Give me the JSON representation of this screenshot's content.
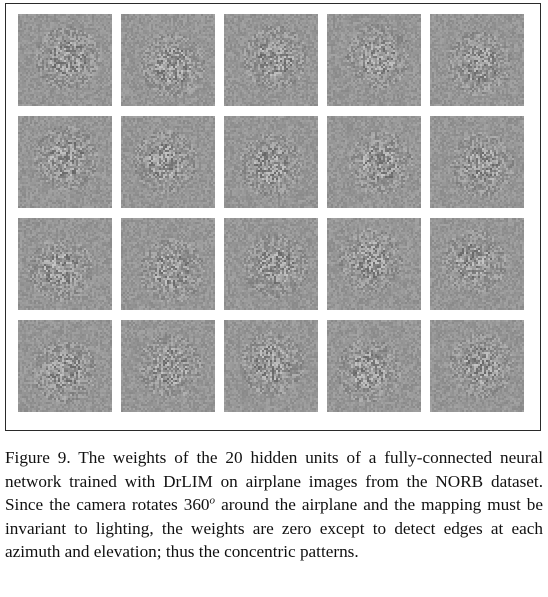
{
  "figure": {
    "tile_count": 20,
    "rows": 4,
    "columns": 5,
    "tile_name": "hidden-unit-weight-image"
  },
  "caption": {
    "before": "Figure 9. The weights of the 20 hidden units of a fully-connected neural network trained with DrLIM on airplane images from the NORB dataset. Since the camera rotates 360",
    "superscript": "o",
    "after": " around the airplane and the mapping must be invariant to lighting, the weights are zero except to detect edges at each azimuth and elevation; thus the concentric patterns."
  }
}
